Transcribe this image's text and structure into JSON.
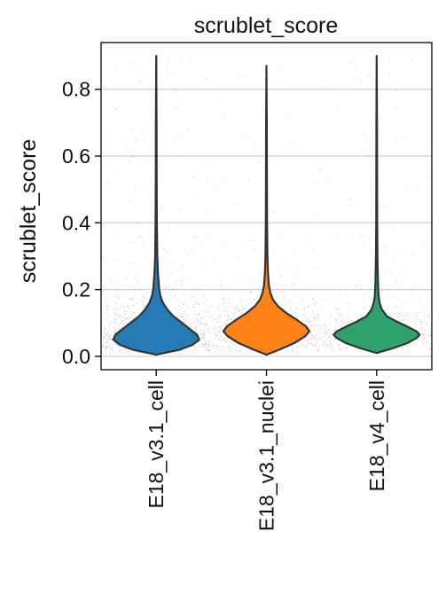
{
  "chart_data": {
    "type": "violin",
    "title": "scrublet_score",
    "xlabel": "",
    "ylabel": "scrublet_score",
    "ylim": [
      -0.04,
      0.94
    ],
    "yticks": [
      0.0,
      0.2,
      0.4,
      0.6,
      0.8
    ],
    "ytick_labels": [
      "0.0",
      "0.2",
      "0.4",
      "0.6",
      "0.8"
    ],
    "grid": "horizontal",
    "legend": "none",
    "categories": [
      "E18_v3.1_cell",
      "E18_v3.1_nuclei",
      "E18_v4_cell"
    ],
    "series": [
      {
        "category": "E18_v3.1_cell",
        "color": "#1f77b4",
        "min": 0.005,
        "max": 0.9,
        "density": [
          [
            0.005,
            0.0
          ],
          [
            0.02,
            0.55
          ],
          [
            0.035,
            0.85
          ],
          [
            0.05,
            1.0
          ],
          [
            0.065,
            0.95
          ],
          [
            0.08,
            0.8
          ],
          [
            0.1,
            0.6
          ],
          [
            0.12,
            0.4
          ],
          [
            0.14,
            0.26
          ],
          [
            0.16,
            0.16
          ],
          [
            0.18,
            0.1
          ],
          [
            0.2,
            0.07
          ],
          [
            0.25,
            0.04
          ],
          [
            0.3,
            0.025
          ],
          [
            0.4,
            0.015
          ],
          [
            0.55,
            0.01
          ],
          [
            0.7,
            0.008
          ],
          [
            0.9,
            0.0
          ]
        ]
      },
      {
        "category": "E18_v3.1_nuclei",
        "color": "#ff7f0e",
        "min": 0.005,
        "max": 0.87,
        "density": [
          [
            0.005,
            0.0
          ],
          [
            0.02,
            0.3
          ],
          [
            0.04,
            0.65
          ],
          [
            0.06,
            0.9
          ],
          [
            0.075,
            1.0
          ],
          [
            0.09,
            0.92
          ],
          [
            0.11,
            0.7
          ],
          [
            0.13,
            0.46
          ],
          [
            0.15,
            0.27
          ],
          [
            0.17,
            0.15
          ],
          [
            0.19,
            0.09
          ],
          [
            0.21,
            0.06
          ],
          [
            0.25,
            0.035
          ],
          [
            0.3,
            0.022
          ],
          [
            0.4,
            0.014
          ],
          [
            0.55,
            0.01
          ],
          [
            0.7,
            0.008
          ],
          [
            0.87,
            0.0
          ]
        ]
      },
      {
        "category": "E18_v4_cell",
        "color": "#279e68",
        "min": 0.01,
        "max": 0.9,
        "density": [
          [
            0.01,
            0.0
          ],
          [
            0.025,
            0.4
          ],
          [
            0.04,
            0.72
          ],
          [
            0.055,
            0.93
          ],
          [
            0.065,
            1.0
          ],
          [
            0.075,
            0.93
          ],
          [
            0.09,
            0.7
          ],
          [
            0.105,
            0.45
          ],
          [
            0.12,
            0.24
          ],
          [
            0.14,
            0.12
          ],
          [
            0.16,
            0.07
          ],
          [
            0.18,
            0.045
          ],
          [
            0.22,
            0.03
          ],
          [
            0.3,
            0.018
          ],
          [
            0.4,
            0.012
          ],
          [
            0.55,
            0.009
          ],
          [
            0.7,
            0.007
          ],
          [
            0.9,
            0.0
          ]
        ]
      }
    ]
  }
}
